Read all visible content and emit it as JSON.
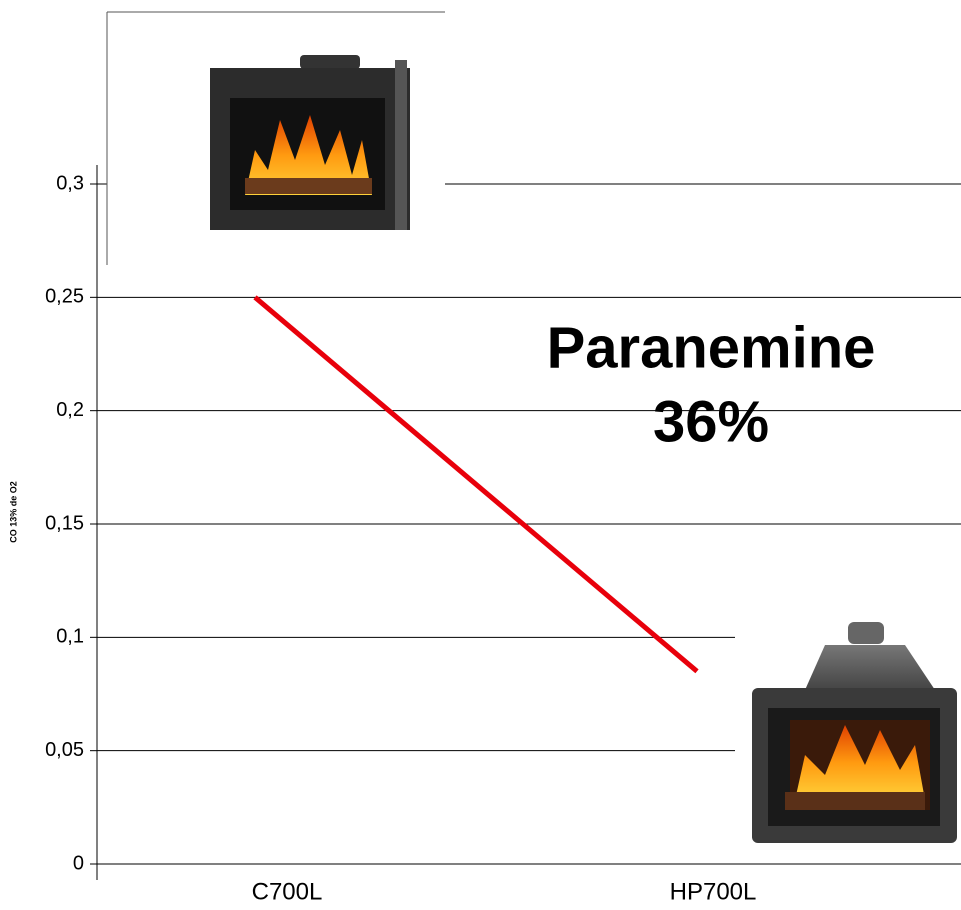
{
  "chart_data": {
    "type": "line",
    "ylabel": "CO  13% de O2",
    "annotation": [
      "Paranemine",
      "36%"
    ],
    "categories": [
      "C700L",
      "HP700L"
    ],
    "values": [
      0.25,
      0.085
    ],
    "color": "#e8000b",
    "ylim": [
      0,
      0.3
    ],
    "yticks": [
      0,
      {
        "value": 0.05,
        "label": "0,05"
      },
      {
        "value": 0.1,
        "label": "0,1"
      },
      {
        "value": 0.15,
        "label": "0,15"
      },
      {
        "value": 0.2,
        "label": "0,2"
      },
      {
        "value": 0.25,
        "label": "0,25"
      },
      {
        "value": 0.3,
        "label": "0,3"
      }
    ],
    "grid": true
  }
}
